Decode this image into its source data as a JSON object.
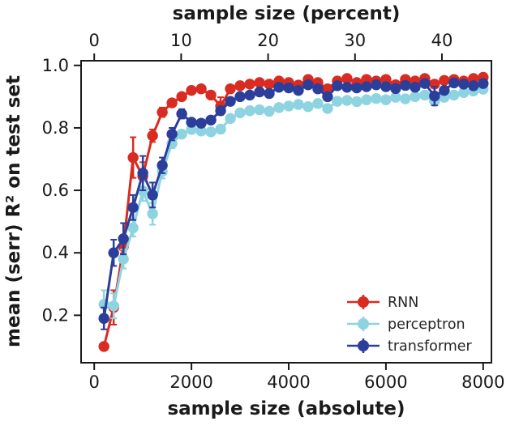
{
  "figure": {
    "title_top": "sample size (percent)",
    "xlabel_bottom": "sample size (absolute)",
    "ylabel": "mean (serr) R² on test set"
  },
  "chart_data": {
    "type": "line",
    "title": "sample size (percent)",
    "xlabel": "sample size (absolute)",
    "ylabel": "mean (serr) R² on test set",
    "marker_style": "filled-circle-with-error-bars",
    "grid": false,
    "axes": {
      "bottom": {
        "label": "sample size (absolute)",
        "ticks": [
          0,
          2000,
          4000,
          6000,
          8000
        ],
        "tick_labels": [
          "0",
          "2000",
          "4000",
          "6000",
          "8000"
        ],
        "range": [
          -270,
          8170
        ]
      },
      "top": {
        "label": "sample size (percent)",
        "ticks": [
          0,
          10,
          20,
          30,
          40
        ],
        "tick_labels": [
          "0",
          "10",
          "20",
          "30",
          "40"
        ],
        "tick_positions_absolute": [
          0,
          1788,
          3576,
          5364,
          7152
        ]
      },
      "left": {
        "label": "mean (serr) R² on test set",
        "ticks": [
          0.2,
          0.4,
          0.6,
          0.8,
          1.0
        ],
        "tick_labels": [
          "0.2",
          "0.4",
          "0.6",
          "0.8",
          "1.0"
        ],
        "range": [
          0.048,
          1.015
        ]
      }
    },
    "x": [
      200,
      400,
      600,
      800,
      1000,
      1200,
      1400,
      1600,
      1800,
      2000,
      2200,
      2400,
      2600,
      2800,
      3000,
      3200,
      3400,
      3600,
      3800,
      4000,
      4200,
      4400,
      4600,
      4800,
      5000,
      5200,
      5400,
      5600,
      5800,
      6000,
      6200,
      6400,
      6600,
      6800,
      7000,
      7200,
      7400,
      7600,
      7800,
      8000
    ],
    "series": [
      {
        "name": "RNN",
        "color": "#d92b21",
        "y": [
          0.1,
          0.225,
          0.42,
          0.705,
          0.645,
          0.775,
          0.85,
          0.88,
          0.9,
          0.92,
          0.925,
          0.905,
          0.87,
          0.925,
          0.935,
          0.94,
          0.945,
          0.94,
          0.95,
          0.945,
          0.937,
          0.955,
          0.945,
          0.925,
          0.95,
          0.958,
          0.945,
          0.955,
          0.95,
          0.955,
          0.938,
          0.955,
          0.95,
          0.958,
          0.94,
          0.952,
          0.955,
          0.95,
          0.958,
          0.962
        ],
        "err": [
          0.012,
          0.055,
          0.022,
          0.065,
          0.045,
          0.02,
          0.015,
          0.012,
          0.01,
          0.01,
          0.008,
          0.01,
          0.028,
          0.008,
          0.008,
          0.007,
          0.007,
          0.007,
          0.006,
          0.006,
          0.008,
          0.006,
          0.006,
          0.01,
          0.006,
          0.005,
          0.006,
          0.005,
          0.006,
          0.005,
          0.008,
          0.005,
          0.005,
          0.005,
          0.01,
          0.006,
          0.005,
          0.005,
          0.005,
          0.005
        ]
      },
      {
        "name": "perceptron",
        "color": "#8dd3e0",
        "y": [
          0.235,
          0.23,
          0.38,
          0.48,
          0.598,
          0.525,
          0.66,
          0.75,
          0.78,
          0.795,
          0.79,
          0.787,
          0.796,
          0.83,
          0.848,
          0.855,
          0.858,
          0.853,
          0.865,
          0.87,
          0.875,
          0.868,
          0.878,
          0.862,
          0.885,
          0.888,
          0.884,
          0.89,
          0.894,
          0.89,
          0.898,
          0.893,
          0.9,
          0.905,
          0.885,
          0.898,
          0.905,
          0.913,
          0.918,
          0.924
        ],
        "err": [
          0.045,
          0.04,
          0.03,
          0.028,
          0.032,
          0.035,
          0.022,
          0.015,
          0.012,
          0.01,
          0.01,
          0.009,
          0.009,
          0.008,
          0.008,
          0.008,
          0.007,
          0.007,
          0.007,
          0.006,
          0.006,
          0.008,
          0.006,
          0.012,
          0.006,
          0.006,
          0.006,
          0.005,
          0.005,
          0.005,
          0.005,
          0.005,
          0.005,
          0.005,
          0.012,
          0.006,
          0.005,
          0.005,
          0.005,
          0.005
        ]
      },
      {
        "name": "transformer",
        "color": "#2b3e9a",
        "y": [
          0.19,
          0.4,
          0.445,
          0.545,
          0.655,
          0.585,
          0.68,
          0.78,
          0.845,
          0.818,
          0.815,
          0.825,
          0.855,
          0.885,
          0.9,
          0.905,
          0.915,
          0.91,
          0.93,
          0.928,
          0.92,
          0.938,
          0.925,
          0.9,
          0.935,
          0.93,
          0.928,
          0.932,
          0.938,
          0.932,
          0.926,
          0.936,
          0.93,
          0.942,
          0.902,
          0.92,
          0.944,
          0.94,
          0.935,
          0.942
        ],
        "err": [
          0.035,
          0.042,
          0.05,
          0.04,
          0.055,
          0.04,
          0.025,
          0.02,
          0.015,
          0.012,
          0.01,
          0.01,
          0.01,
          0.009,
          0.008,
          0.008,
          0.008,
          0.007,
          0.007,
          0.006,
          0.006,
          0.006,
          0.006,
          0.01,
          0.006,
          0.006,
          0.005,
          0.005,
          0.005,
          0.005,
          0.005,
          0.005,
          0.005,
          0.005,
          0.03,
          0.008,
          0.005,
          0.005,
          0.005,
          0.005
        ]
      }
    ],
    "legend": {
      "position": "lower right",
      "entries": [
        {
          "label": "RNN",
          "color": "#d92b21"
        },
        {
          "label": "perceptron",
          "color": "#8dd3e0"
        },
        {
          "label": "transformer",
          "color": "#2b3e9a"
        }
      ]
    },
    "frame_color": "#1a1a1a"
  }
}
